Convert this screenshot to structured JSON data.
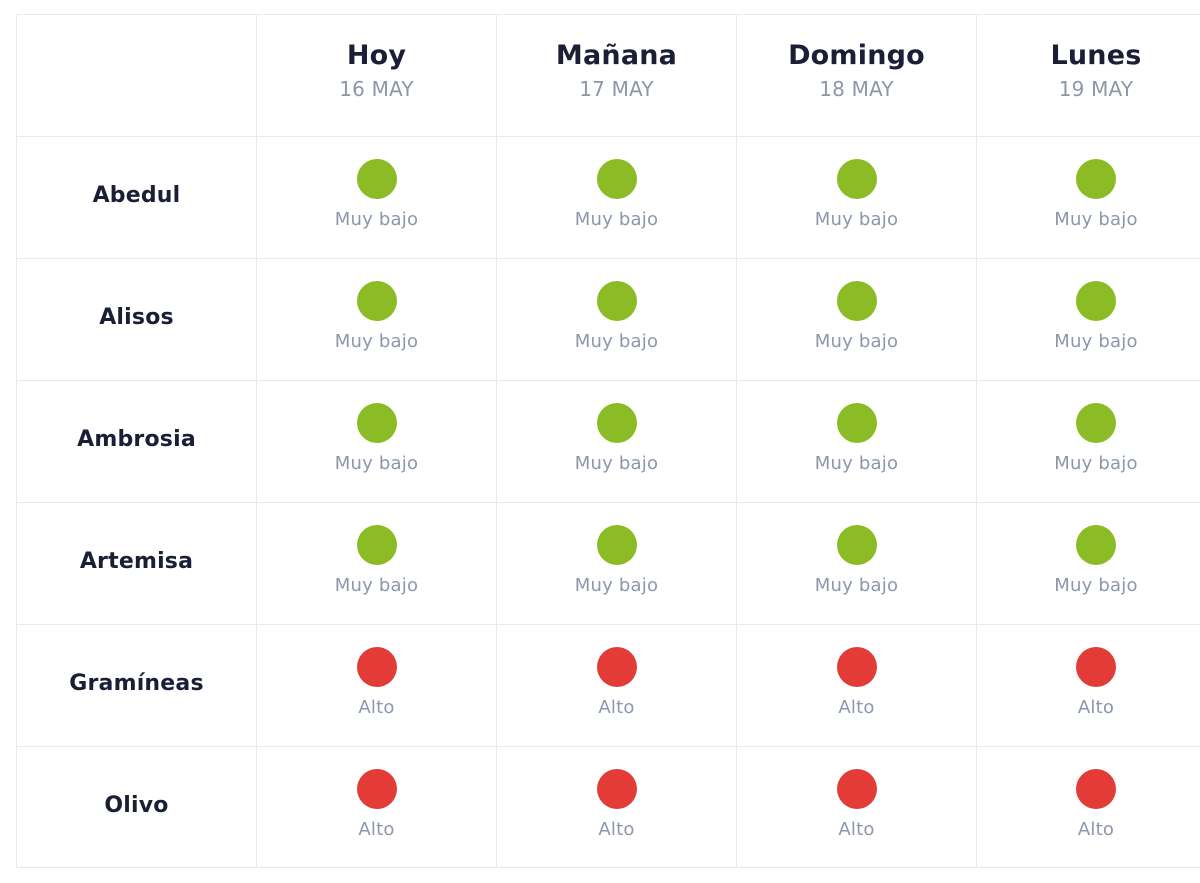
{
  "colors": {
    "muy_bajo": "#8cbc25",
    "alto": "#e33b36",
    "text_dark": "#1a1f36",
    "text_muted": "#8c97aa",
    "grid": "#e7e9ee"
  },
  "days": [
    {
      "name": "Hoy",
      "date": "16 MAY"
    },
    {
      "name": "Mañana",
      "date": "17 MAY"
    },
    {
      "name": "Domingo",
      "date": "18 MAY"
    },
    {
      "name": "Lunes",
      "date": "19 MAY"
    }
  ],
  "rows": [
    {
      "species": "Abedul",
      "values": [
        {
          "label": "Muy bajo",
          "level": "muy_bajo",
          "dot_icon": "green-dot-icon"
        },
        {
          "label": "Muy bajo",
          "level": "muy_bajo",
          "dot_icon": "green-dot-icon"
        },
        {
          "label": "Muy bajo",
          "level": "muy_bajo",
          "dot_icon": "green-dot-icon"
        },
        {
          "label": "Muy bajo",
          "level": "muy_bajo",
          "dot_icon": "green-dot-icon"
        }
      ]
    },
    {
      "species": "Alisos",
      "values": [
        {
          "label": "Muy bajo",
          "level": "muy_bajo",
          "dot_icon": "green-dot-icon"
        },
        {
          "label": "Muy bajo",
          "level": "muy_bajo",
          "dot_icon": "green-dot-icon"
        },
        {
          "label": "Muy bajo",
          "level": "muy_bajo",
          "dot_icon": "green-dot-icon"
        },
        {
          "label": "Muy bajo",
          "level": "muy_bajo",
          "dot_icon": "green-dot-icon"
        }
      ]
    },
    {
      "species": "Ambrosia",
      "values": [
        {
          "label": "Muy bajo",
          "level": "muy_bajo",
          "dot_icon": "green-dot-icon"
        },
        {
          "label": "Muy bajo",
          "level": "muy_bajo",
          "dot_icon": "green-dot-icon"
        },
        {
          "label": "Muy bajo",
          "level": "muy_bajo",
          "dot_icon": "green-dot-icon"
        },
        {
          "label": "Muy bajo",
          "level": "muy_bajo",
          "dot_icon": "green-dot-icon"
        }
      ]
    },
    {
      "species": "Artemisa",
      "values": [
        {
          "label": "Muy bajo",
          "level": "muy_bajo",
          "dot_icon": "green-dot-icon"
        },
        {
          "label": "Muy bajo",
          "level": "muy_bajo",
          "dot_icon": "green-dot-icon"
        },
        {
          "label": "Muy bajo",
          "level": "muy_bajo",
          "dot_icon": "green-dot-icon"
        },
        {
          "label": "Muy bajo",
          "level": "muy_bajo",
          "dot_icon": "green-dot-icon"
        }
      ]
    },
    {
      "species": "Gramíneas",
      "values": [
        {
          "label": "Alto",
          "level": "alto",
          "dot_icon": "red-dot-icon"
        },
        {
          "label": "Alto",
          "level": "alto",
          "dot_icon": "red-dot-icon"
        },
        {
          "label": "Alto",
          "level": "alto",
          "dot_icon": "red-dot-icon"
        },
        {
          "label": "Alto",
          "level": "alto",
          "dot_icon": "red-dot-icon"
        }
      ]
    },
    {
      "species": "Olivo",
      "values": [
        {
          "label": "Alto",
          "level": "alto",
          "dot_icon": "red-dot-icon"
        },
        {
          "label": "Alto",
          "level": "alto",
          "dot_icon": "red-dot-icon"
        },
        {
          "label": "Alto",
          "level": "alto",
          "dot_icon": "red-dot-icon"
        },
        {
          "label": "Alto",
          "level": "alto",
          "dot_icon": "red-dot-icon"
        }
      ]
    }
  ]
}
